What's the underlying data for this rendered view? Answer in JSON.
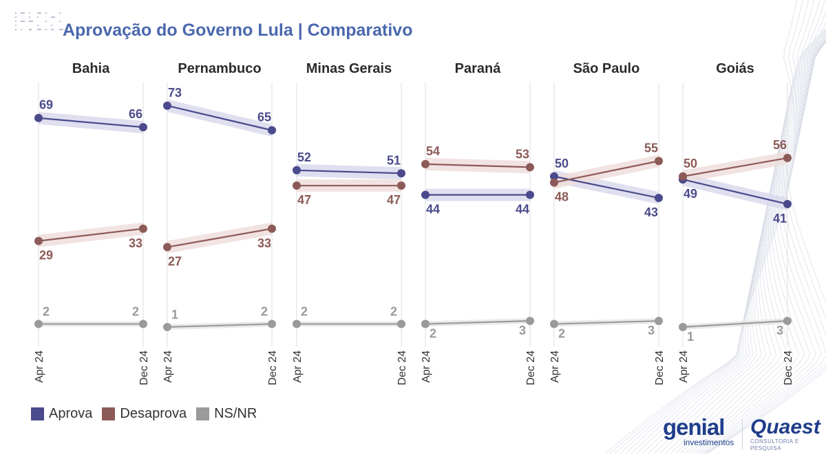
{
  "title": "Aprovação do Governo Lula | Comparativo",
  "colors": {
    "aprova": "#4a4a8c",
    "desaprova": "#8c5a57",
    "nsnr": "#9a9a9a",
    "title": "#4a68ad",
    "gridline": "#e3e3e3",
    "band_aprova": "#d9d9ec",
    "band_desaprova": "#efdedc",
    "band_nsnr": "#e6e6e6"
  },
  "legend": [
    {
      "label": "Aprova",
      "color": "#4a4a8c"
    },
    {
      "label": "Desaprova",
      "color": "#8c5a57"
    },
    {
      "label": "NS/NR",
      "color": "#9a9a9a"
    }
  ],
  "logos": {
    "genial_name": "genial",
    "genial_sub": "investimentos",
    "quaest_name": "Quaest",
    "quaest_sub": "CONSULTORIA E PESQUISA"
  },
  "chart_data": {
    "type": "line",
    "x": [
      "Apr 24",
      "Dec 24"
    ],
    "ylim": [
      0,
      80
    ],
    "grid": "vertical",
    "legend_position": "bottom-left",
    "panels": [
      {
        "state": "Bahia",
        "series": [
          {
            "name": "Aprova",
            "values": [
              69,
              66
            ]
          },
          {
            "name": "Desaprova",
            "values": [
              29,
              33
            ]
          },
          {
            "name": "NS/NR",
            "values": [
              2,
              2
            ]
          }
        ]
      },
      {
        "state": "Pernambuco",
        "series": [
          {
            "name": "Aprova",
            "values": [
              73,
              65
            ]
          },
          {
            "name": "Desaprova",
            "values": [
              27,
              33
            ]
          },
          {
            "name": "NS/NR",
            "values": [
              1,
              2
            ]
          }
        ]
      },
      {
        "state": "Minas Gerais",
        "series": [
          {
            "name": "Aprova",
            "values": [
              52,
              51
            ]
          },
          {
            "name": "Desaprova",
            "values": [
              47,
              47
            ]
          },
          {
            "name": "NS/NR",
            "values": [
              2,
              2
            ]
          }
        ]
      },
      {
        "state": "Paraná",
        "series": [
          {
            "name": "Aprova",
            "values": [
              44,
              44
            ]
          },
          {
            "name": "Desaprova",
            "values": [
              54,
              53
            ]
          },
          {
            "name": "NS/NR",
            "values": [
              2,
              3
            ]
          }
        ]
      },
      {
        "state": "São Paulo",
        "series": [
          {
            "name": "Aprova",
            "values": [
              50,
              43
            ]
          },
          {
            "name": "Desaprova",
            "values": [
              48,
              55
            ]
          },
          {
            "name": "NS/NR",
            "values": [
              2,
              3
            ]
          }
        ]
      },
      {
        "state": "Goiás",
        "series": [
          {
            "name": "Aprova",
            "values": [
              49,
              41
            ]
          },
          {
            "name": "Desaprova",
            "values": [
              50,
              56
            ]
          },
          {
            "name": "NS/NR",
            "values": [
              1,
              3
            ]
          }
        ]
      }
    ]
  }
}
